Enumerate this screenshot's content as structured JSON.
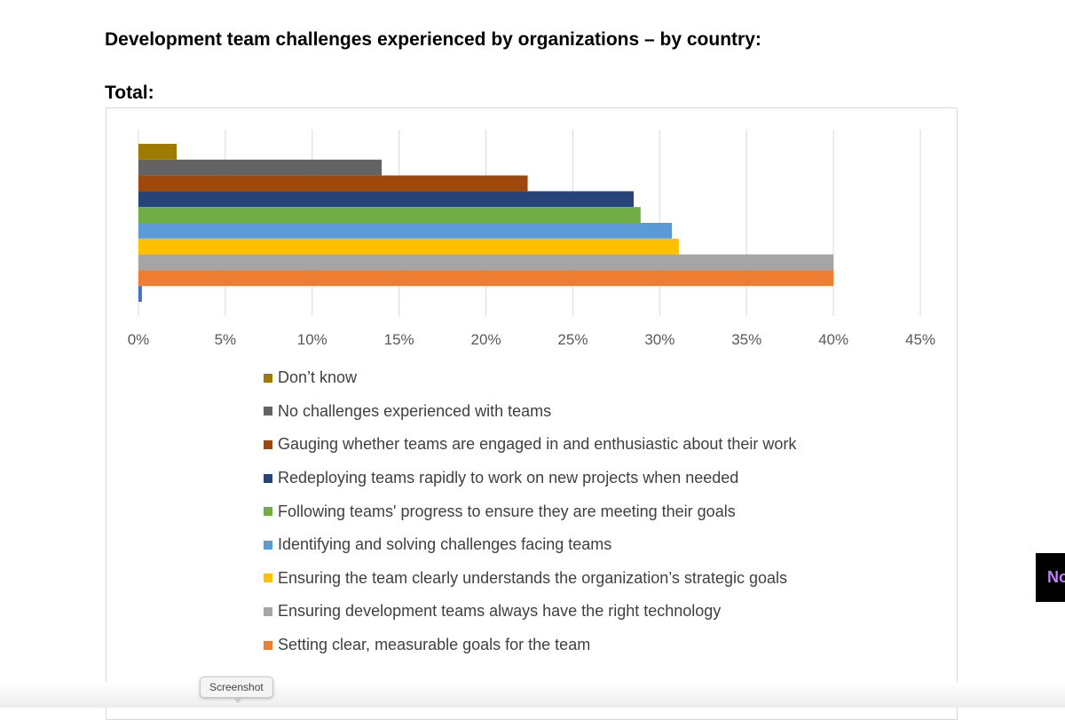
{
  "page": {
    "title": "Development team challenges experienced by organizations – by country:",
    "subtitle": "Total:",
    "tooltip": "Screenshot",
    "widget_text": "No"
  },
  "chart_data": {
    "type": "bar",
    "orientation": "horizontal",
    "xlim": [
      0,
      45
    ],
    "ticks": [
      "0%",
      "5%",
      "10%",
      "15%",
      "20%",
      "25%",
      "30%",
      "35%",
      "40%",
      "45%"
    ],
    "grid": true,
    "legend_position": "bottom",
    "series": [
      {
        "name": "Don’t know",
        "value": 2.2,
        "color": "#9e7b00"
      },
      {
        "name": "No challenges experienced with teams",
        "value": 14.0,
        "color": "#636363"
      },
      {
        "name": "Gauging whether teams are engaged in and enthusiastic about their work",
        "value": 22.4,
        "color": "#9e480e"
      },
      {
        "name": "Redeploying teams rapidly to work on new projects when needed",
        "value": 28.5,
        "color": "#264478"
      },
      {
        "name": "Following teams' progress to ensure they are meeting their goals",
        "value": 28.9,
        "color": "#70ad47"
      },
      {
        "name": "Identifying and solving challenges facing teams",
        "value": 30.7,
        "color": "#5b9bd5"
      },
      {
        "name": "Ensuring the team clearly understands the organization’s strategic goals",
        "value": 31.1,
        "color": "#ffc000"
      },
      {
        "name": "Ensuring development teams always have the right technology",
        "value": 40.0,
        "color": "#a5a5a5"
      },
      {
        "name": "Setting clear, measurable goals for the team",
        "value": 40.0,
        "color": "#ed7d31"
      },
      {
        "name": "",
        "value": 0.2,
        "color": "#4472c4"
      }
    ]
  }
}
